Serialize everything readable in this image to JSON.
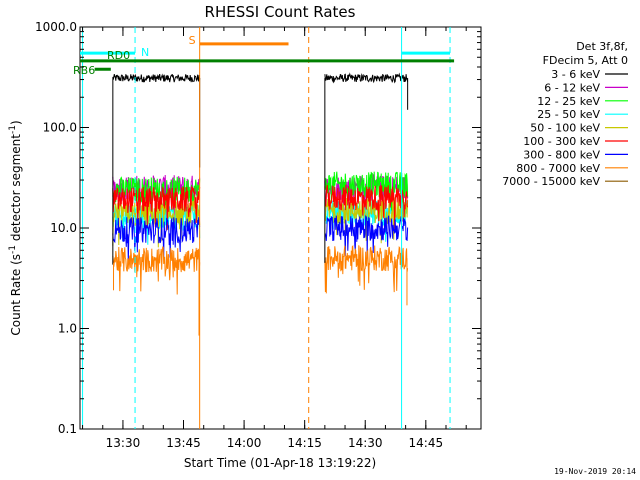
{
  "chart_data": {
    "type": "line",
    "title": "RHESSI Count Rates",
    "xlabel": "Start Time (01-Apr-18 13:19:22)",
    "ylabel_prefix": "Count Rate (s",
    "ylabel_sup1": "-1",
    "ylabel_mid": " detector segment",
    "ylabel_sup2": "-1",
    "ylabel_suffix": ")",
    "y_scale": "log",
    "ylim": [
      0.1,
      1000
    ],
    "y_tick_values": [
      0.1,
      1,
      10,
      100,
      1000
    ],
    "y_tick_labels": [
      "0.1",
      "1.0",
      "10.0",
      "100.0",
      "1000.0"
    ],
    "x_range": [
      "13:19:22",
      "14:58:40"
    ],
    "x_tick_values": [
      "13:30",
      "13:45",
      "14:00",
      "14:15",
      "14:30",
      "14:45"
    ],
    "x_tick_labels": [
      "13:30",
      "13:45",
      "14:00",
      "14:15",
      "14:30",
      "14:45"
    ],
    "legend_header": [
      "Det 3f,8f,",
      "FDecim 5, Att 0"
    ],
    "legend_position": "right, outside plot",
    "series": [
      {
        "name": "3 - 6 keV",
        "color": "#000000",
        "segments": [
          {
            "start": "13:27:30",
            "end": "13:49:00",
            "level": 310
          },
          {
            "start": "14:20:00",
            "end": "14:40:30",
            "level": 310
          }
        ]
      },
      {
        "name": "6 - 12 keV",
        "color": "#c800c8",
        "segments": [
          {
            "start": "13:27:30",
            "end": "13:49:00",
            "level": 25
          },
          {
            "start": "14:20:00",
            "end": "14:40:30",
            "level": 25
          }
        ]
      },
      {
        "name": "12 - 25 keV",
        "color": "#00ff00",
        "segments": [
          {
            "start": "13:27:30",
            "end": "13:49:00",
            "level": 24
          },
          {
            "start": "14:20:00",
            "end": "14:40:30",
            "level": 27
          }
        ]
      },
      {
        "name": "25 - 50 keV",
        "color": "#00ffff",
        "segments": [
          {
            "start": "13:27:30",
            "end": "13:49:00",
            "level": 13
          },
          {
            "start": "14:20:00",
            "end": "14:40:30",
            "level": 14
          }
        ]
      },
      {
        "name": "50 - 100 keV",
        "color": "#c8c800",
        "segments": [
          {
            "start": "13:27:30",
            "end": "13:49:00",
            "level": 14
          },
          {
            "start": "14:20:00",
            "end": "14:40:30",
            "level": 15
          }
        ]
      },
      {
        "name": "100 - 300 keV",
        "color": "#ff0000",
        "segments": [
          {
            "start": "13:27:30",
            "end": "13:49:00",
            "level": 19
          },
          {
            "start": "14:20:00",
            "end": "14:40:30",
            "level": 20
          }
        ]
      },
      {
        "name": "300 - 800 keV",
        "color": "#0000ff",
        "segments": [
          {
            "start": "13:27:30",
            "end": "13:49:00",
            "level": 9.5
          },
          {
            "start": "14:20:00",
            "end": "14:40:30",
            "level": 10
          }
        ]
      },
      {
        "name": "800 - 7000 keV",
        "color": "#ff8000",
        "segments": [
          {
            "start": "13:27:30",
            "end": "13:49:00",
            "level": 4.8
          },
          {
            "start": "14:20:00",
            "end": "14:40:30",
            "level": 5
          }
        ]
      },
      {
        "name": "7000 - 15000 keV",
        "color": "#8c5a00",
        "segments": []
      }
    ],
    "flags": [
      {
        "label": "N",
        "color": "#00ffff",
        "style": "solid",
        "level": 550,
        "segments": [
          {
            "start": "13:19:22",
            "end": "13:33:00"
          },
          {
            "start": "14:39:00",
            "end": "14:51:00"
          }
        ]
      },
      {
        "label": "S",
        "color": "#ff8000",
        "style": "solid",
        "level": 680,
        "segments": [
          {
            "start": "13:49:00",
            "end": "14:11:00"
          }
        ]
      },
      {
        "label": "RD0",
        "color": "#008000",
        "style": "solid",
        "level": 460,
        "segments": [
          {
            "start": "13:19:22",
            "end": "14:52:00"
          }
        ]
      },
      {
        "label": "RB6",
        "color": "#008000",
        "style": "solid",
        "level": 380,
        "segments": [
          {
            "start": "13:23:00",
            "end": "13:27:00"
          }
        ]
      }
    ],
    "vertical_markers": [
      {
        "time": "13:20:00",
        "color": "#00ffff",
        "style": "solid"
      },
      {
        "time": "13:33:00",
        "color": "#00ffff",
        "style": "dashed"
      },
      {
        "time": "13:49:00",
        "color": "#ff8000",
        "style": "solid"
      },
      {
        "time": "14:16:00",
        "color": "#ff8000",
        "style": "dashed"
      },
      {
        "time": "14:39:00",
        "color": "#00ffff",
        "style": "solid"
      },
      {
        "time": "14:51:00",
        "color": "#00ffff",
        "style": "dashed"
      }
    ],
    "grid": false
  },
  "footer": {
    "timestamp": "19-Nov-2019 20:14"
  }
}
